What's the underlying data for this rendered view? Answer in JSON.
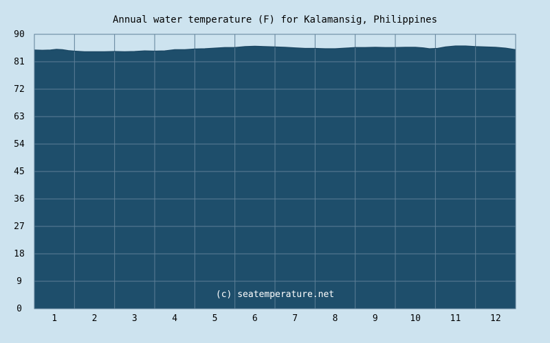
{
  "chart_data": {
    "type": "area",
    "title": "Annual water temperature (F) for Kalamansig, Philippines",
    "xlabel": "",
    "ylabel": "",
    "ylim": [
      0,
      90
    ],
    "xlim": [
      0.5,
      12.5
    ],
    "yticks": [
      0,
      9,
      18,
      27,
      36,
      45,
      54,
      63,
      72,
      81,
      90
    ],
    "xticks": [
      1,
      2,
      3,
      4,
      5,
      6,
      7,
      8,
      9,
      10,
      11,
      12
    ],
    "grid": true,
    "fill_color": "#1e4e6b",
    "line_color": "#1a4460",
    "grid_color": "#5d7f97",
    "background_color": "#cde3ef",
    "watermark": "(c) seatemperature.net",
    "points": [
      {
        "x": 0.5,
        "y": 84.9
      },
      {
        "x": 0.7,
        "y": 84.8
      },
      {
        "x": 0.9,
        "y": 84.9
      },
      {
        "x": 1.05,
        "y": 85.1
      },
      {
        "x": 1.2,
        "y": 85.0
      },
      {
        "x": 1.35,
        "y": 84.7
      },
      {
        "x": 1.5,
        "y": 84.5
      },
      {
        "x": 1.75,
        "y": 84.3
      },
      {
        "x": 2.0,
        "y": 84.3
      },
      {
        "x": 2.25,
        "y": 84.3
      },
      {
        "x": 2.5,
        "y": 84.4
      },
      {
        "x": 2.75,
        "y": 84.3
      },
      {
        "x": 3.0,
        "y": 84.4
      },
      {
        "x": 3.25,
        "y": 84.6
      },
      {
        "x": 3.5,
        "y": 84.5
      },
      {
        "x": 3.75,
        "y": 84.6
      },
      {
        "x": 4.0,
        "y": 85.0
      },
      {
        "x": 4.25,
        "y": 85.0
      },
      {
        "x": 4.5,
        "y": 85.2
      },
      {
        "x": 4.75,
        "y": 85.3
      },
      {
        "x": 5.0,
        "y": 85.5
      },
      {
        "x": 5.25,
        "y": 85.7
      },
      {
        "x": 5.5,
        "y": 85.7
      },
      {
        "x": 5.75,
        "y": 86.0
      },
      {
        "x": 6.0,
        "y": 86.1
      },
      {
        "x": 6.25,
        "y": 86.0
      },
      {
        "x": 6.5,
        "y": 85.9
      },
      {
        "x": 6.75,
        "y": 85.8
      },
      {
        "x": 7.0,
        "y": 85.6
      },
      {
        "x": 7.25,
        "y": 85.4
      },
      {
        "x": 7.5,
        "y": 85.4
      },
      {
        "x": 7.75,
        "y": 85.3
      },
      {
        "x": 8.0,
        "y": 85.3
      },
      {
        "x": 8.25,
        "y": 85.5
      },
      {
        "x": 8.5,
        "y": 85.7
      },
      {
        "x": 8.75,
        "y": 85.7
      },
      {
        "x": 9.0,
        "y": 85.8
      },
      {
        "x": 9.25,
        "y": 85.7
      },
      {
        "x": 9.5,
        "y": 85.7
      },
      {
        "x": 9.75,
        "y": 85.8
      },
      {
        "x": 10.0,
        "y": 85.8
      },
      {
        "x": 10.2,
        "y": 85.6
      },
      {
        "x": 10.35,
        "y": 85.3
      },
      {
        "x": 10.55,
        "y": 85.4
      },
      {
        "x": 10.75,
        "y": 85.9
      },
      {
        "x": 11.0,
        "y": 86.2
      },
      {
        "x": 11.25,
        "y": 86.2
      },
      {
        "x": 11.5,
        "y": 86.0
      },
      {
        "x": 11.75,
        "y": 85.9
      },
      {
        "x": 12.0,
        "y": 85.8
      },
      {
        "x": 12.25,
        "y": 85.5
      },
      {
        "x": 12.5,
        "y": 85.0
      }
    ]
  }
}
